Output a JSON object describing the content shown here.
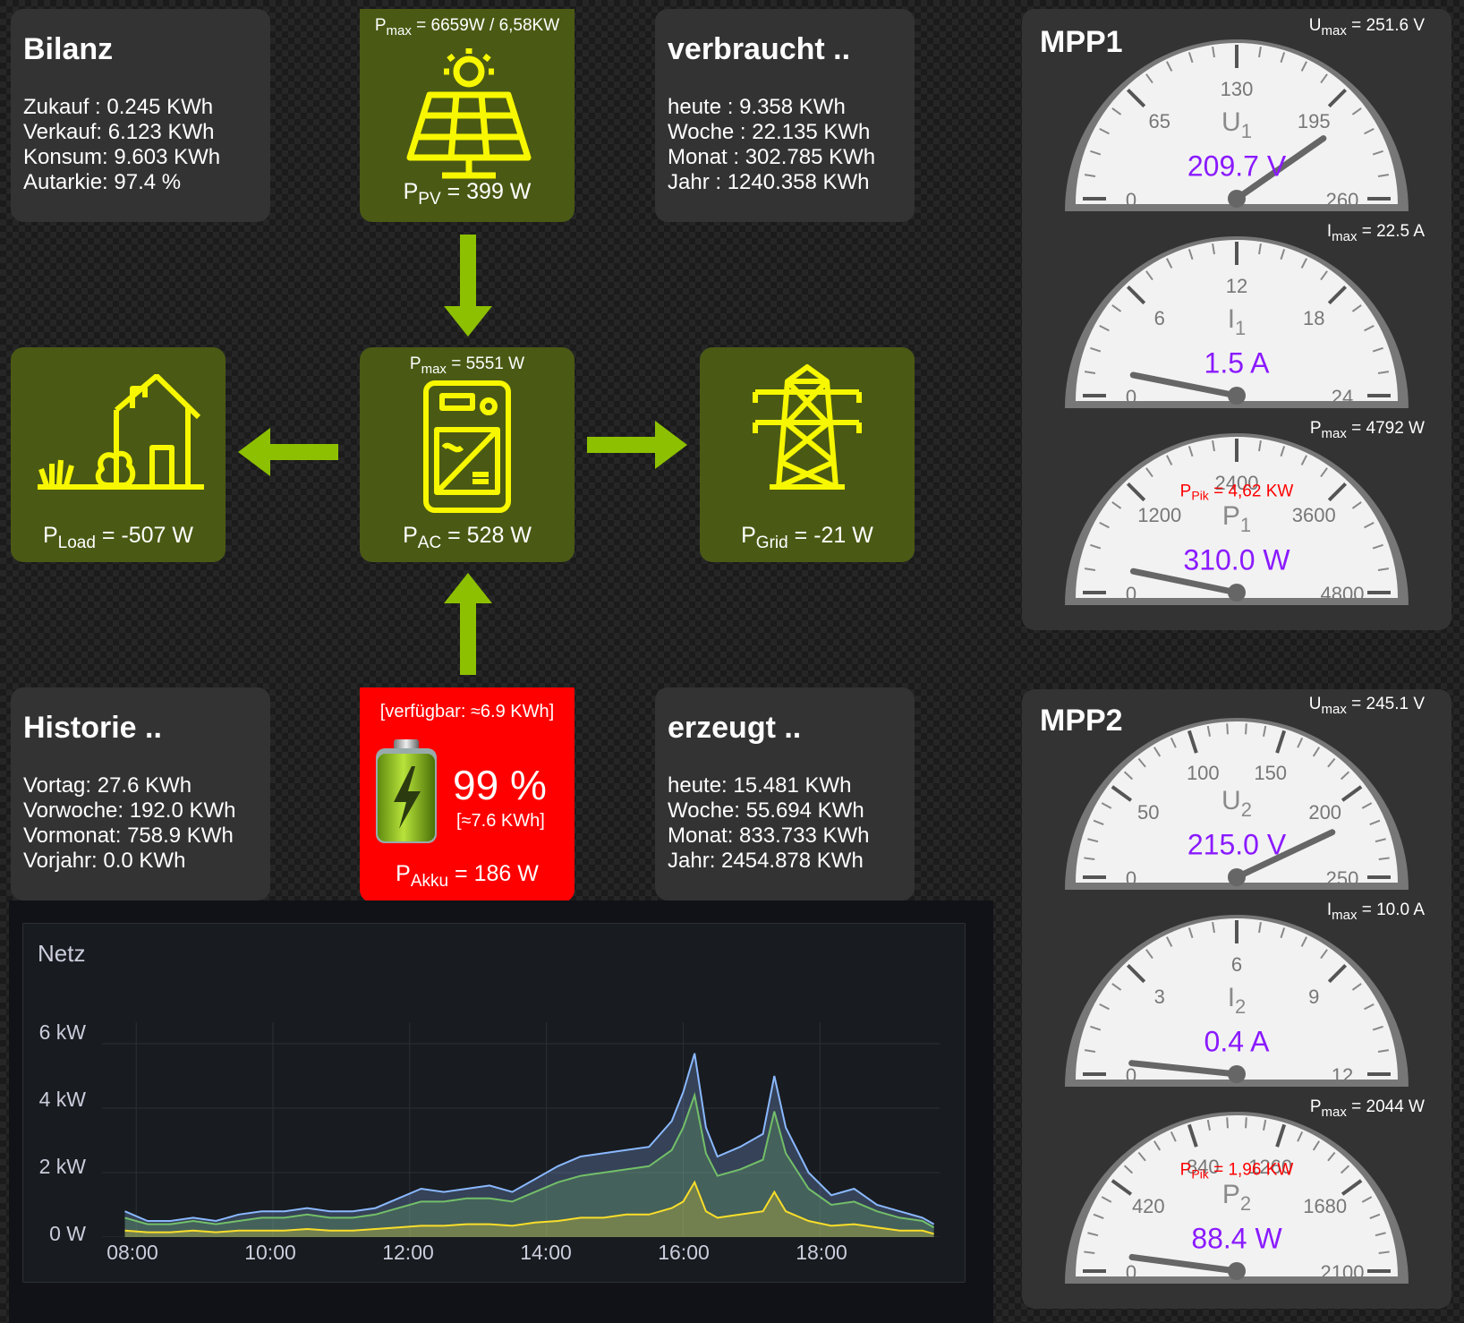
{
  "bilanz": {
    "title": "Bilanz",
    "lines": [
      "Zukauf : 0.245 KWh",
      "Verkauf: 6.123 KWh",
      "Konsum: 9.603 KWh",
      "Autarkie: 97.4 %"
    ]
  },
  "verbraucht": {
    "title": "verbraucht ..",
    "lines": [
      "heute : 9.358 KWh",
      "Woche : 22.135 KWh",
      "Monat : 302.785 KWh",
      "Jahr : 1240.358 KWh"
    ]
  },
  "historie": {
    "title": "Historie ..",
    "lines": [
      "Vortag: 27.6 KWh",
      "Vorwoche: 192.0 KWh",
      "Vormonat: 758.9 KWh",
      "Vorjahr: 0.0 KWh"
    ]
  },
  "erzeugt": {
    "title": "erzeugt ..",
    "lines": [
      "heute: 15.481 KWh",
      "Woche: 55.694 KWh",
      "Monat: 833.733 KWh",
      "Jahr: 2454.878 KWh"
    ]
  },
  "pv": {
    "pmax_label": "P",
    "pmax_sub": "max",
    "pmax_value": " = 6659W / 6,58KW",
    "p_label": "P",
    "p_sub": "PV",
    "p_value": " = 399 W",
    "icon": "solar-panel-icon"
  },
  "inverter": {
    "pmax_label": "P",
    "pmax_sub": "max",
    "pmax_value": " = 5551 W",
    "p_label": "P",
    "p_sub": "AC",
    "p_value": " = 528 W",
    "icon": "inverter-icon"
  },
  "load": {
    "p_label": "P",
    "p_sub": "Load",
    "p_value": " = -507 W",
    "icon": "house-icon"
  },
  "grid": {
    "p_label": "P",
    "p_sub": "Grid",
    "p_value": " = -21 W",
    "icon": "power-pylon-icon"
  },
  "akku": {
    "available": "[verfügbar: ≈6.9 KWh]",
    "percent": "99 %",
    "energy": "[≈7.6 KWh]",
    "p_label": "P",
    "p_sub": "Akku",
    "p_value": " = 186 W",
    "level": 0.99,
    "icon": "battery-icon"
  },
  "colors": {
    "green_tile": "#4a5a14",
    "yellow_icon": "#f7f700",
    "arrow": "#8dc000",
    "akku_bg": "#ff0000",
    "gauge_value": "#8a1aff",
    "pik": "#ff0000"
  },
  "chart_data": {
    "type": "area",
    "title": "Netz",
    "y_ticks": [
      "6 kW",
      "4 kW",
      "2 kW",
      "0 W"
    ],
    "x_ticks": [
      "08:00",
      "10:00",
      "12:00",
      "14:00",
      "16:00",
      "18:00"
    ],
    "x": [
      "07:50",
      "08:10",
      "08:30",
      "08:50",
      "09:10",
      "09:30",
      "09:50",
      "10:10",
      "10:30",
      "10:50",
      "11:10",
      "11:30",
      "11:50",
      "12:10",
      "12:30",
      "12:50",
      "13:10",
      "13:30",
      "13:50",
      "14:10",
      "14:30",
      "14:50",
      "15:10",
      "15:30",
      "15:50",
      "16:00",
      "16:10",
      "16:20",
      "16:30",
      "16:50",
      "17:10",
      "17:20",
      "17:30",
      "17:50",
      "18:10",
      "18:30",
      "18:50",
      "19:10",
      "19:30",
      "19:40"
    ],
    "ylim": [
      0,
      6.5
    ],
    "series": [
      {
        "color": "#8ab8ff",
        "values": [
          0.8,
          0.5,
          0.5,
          0.6,
          0.5,
          0.7,
          0.8,
          0.8,
          0.9,
          0.8,
          0.8,
          0.9,
          1.2,
          1.5,
          1.4,
          1.5,
          1.6,
          1.4,
          1.8,
          2.2,
          2.5,
          2.6,
          2.7,
          2.8,
          3.6,
          4.5,
          5.7,
          3.4,
          2.5,
          2.8,
          3.2,
          5.0,
          3.4,
          2.0,
          1.3,
          1.5,
          1.0,
          0.8,
          0.6,
          0.4
        ]
      },
      {
        "color": "#73bf69",
        "values": [
          0.6,
          0.4,
          0.4,
          0.5,
          0.4,
          0.5,
          0.6,
          0.6,
          0.7,
          0.6,
          0.6,
          0.7,
          0.9,
          1.1,
          1.1,
          1.2,
          1.2,
          1.1,
          1.4,
          1.7,
          1.9,
          2.0,
          2.1,
          2.2,
          2.7,
          3.4,
          4.4,
          2.6,
          1.9,
          2.1,
          2.4,
          3.9,
          2.6,
          1.5,
          1.0,
          1.1,
          0.8,
          0.6,
          0.5,
          0.3
        ]
      },
      {
        "color": "#fade2a",
        "values": [
          0.2,
          0.15,
          0.15,
          0.2,
          0.15,
          0.2,
          0.2,
          0.2,
          0.25,
          0.2,
          0.2,
          0.25,
          0.3,
          0.35,
          0.35,
          0.4,
          0.4,
          0.35,
          0.45,
          0.5,
          0.6,
          0.6,
          0.7,
          0.7,
          0.9,
          1.1,
          1.7,
          0.8,
          0.6,
          0.7,
          0.8,
          1.4,
          0.8,
          0.5,
          0.35,
          0.4,
          0.3,
          0.2,
          0.2,
          0.1
        ]
      }
    ]
  },
  "mpp1": {
    "title": "MPP1",
    "gauges": [
      {
        "max_label": "U",
        "max_sub": "max",
        "max_value": " = 251.6 V",
        "ticks": [
          "0",
          "65",
          "130",
          "195",
          "260"
        ],
        "sym": "U",
        "sym_sub": "1",
        "value": "209.7 V",
        "pointer_fraction": 0.8065
      },
      {
        "max_label": "I",
        "max_sub": "max",
        "max_value": " = 22.5 A",
        "ticks": [
          "0",
          "6",
          "12",
          "18",
          "24"
        ],
        "sym": "I",
        "sym_sub": "1",
        "value": "1.5 A",
        "pointer_fraction": 0.0625
      },
      {
        "max_label": "P",
        "max_sub": "max",
        "max_value": " = 4792 W",
        "ticks": [
          "0",
          "1200",
          "2400",
          "3600",
          "4800"
        ],
        "sym": "P",
        "sym_sub": "1",
        "value": "310.0 W",
        "pointer_fraction": 0.0646,
        "pik_label": "P",
        "pik_sub": "Pik",
        "pik_value": " = 4,62 KW"
      }
    ]
  },
  "mpp2": {
    "title": "MPP2",
    "gauges": [
      {
        "max_label": "U",
        "max_sub": "max",
        "max_value": " = 245.1 V",
        "ticks": [
          "0",
          "50",
          "100",
          "150",
          "200",
          "250"
        ],
        "sym": "U",
        "sym_sub": "2",
        "value": "215.0 V",
        "pointer_fraction": 0.86
      },
      {
        "max_label": "I",
        "max_sub": "max",
        "max_value": " = 10.0 A",
        "ticks": [
          "0",
          "3",
          "6",
          "9",
          "12"
        ],
        "sym": "I",
        "sym_sub": "2",
        "value": "0.4 A",
        "pointer_fraction": 0.0333
      },
      {
        "max_label": "P",
        "max_sub": "max",
        "max_value": " = 2044 W",
        "ticks": [
          "0",
          "420",
          "840",
          "1260",
          "1680",
          "2100"
        ],
        "sym": "P",
        "sym_sub": "2",
        "value": "88.4 W",
        "pointer_fraction": 0.0421,
        "pik_label": "P",
        "pik_sub": "Pik",
        "pik_value": " = 1,96 KW"
      }
    ]
  }
}
